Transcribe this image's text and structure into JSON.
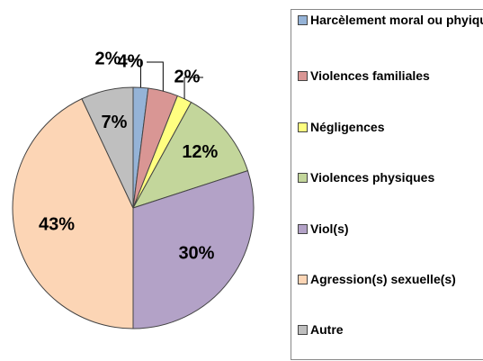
{
  "chart_data": {
    "type": "pie",
    "categories": [
      "Harcèlement moral ou phyique",
      "Violences familiales",
      "Négligences",
      "Violences physiques",
      "Viol(s)",
      "Agression(s) sexuelle(s)",
      "Autre"
    ],
    "values": [
      2,
      4,
      2,
      12,
      30,
      43,
      7
    ],
    "value_labels": [
      "2%",
      "4%",
      "2%",
      "12%",
      "30%",
      "43%",
      "7%"
    ],
    "colors": [
      "#95b3d7",
      "#d99694",
      "#ffff80",
      "#c3d69b",
      "#b3a2c7",
      "#fcd5b5",
      "#bfbfbf"
    ],
    "legend": "right"
  }
}
